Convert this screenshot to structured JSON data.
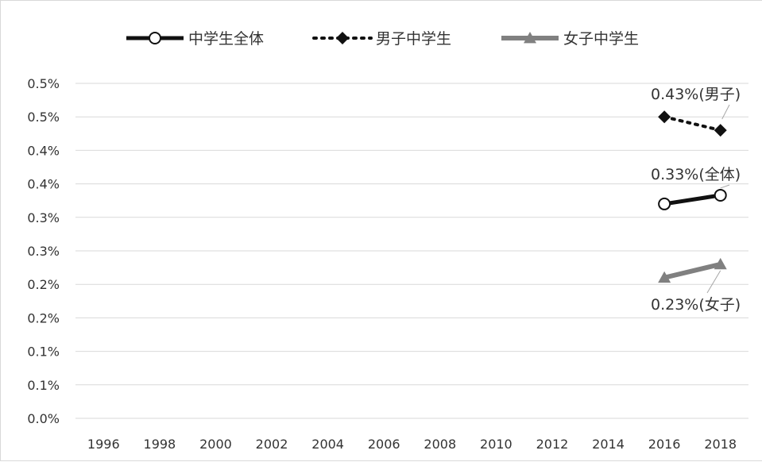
{
  "chart_data": {
    "type": "line",
    "title": "",
    "xlabel": "",
    "ylabel": "",
    "x": [
      1996,
      1998,
      2000,
      2002,
      2004,
      2006,
      2008,
      2010,
      2012,
      2014,
      2016,
      2018
    ],
    "xlim": [
      1996,
      2018
    ],
    "y_tick_values": [
      0.0,
      0.05,
      0.1,
      0.15,
      0.2,
      0.25,
      0.3,
      0.35,
      0.4,
      0.45,
      0.5
    ],
    "y_tick_labels": [
      "0.0%",
      "0.1%",
      "0.1%",
      "0.2%",
      "0.2%",
      "0.3%",
      "0.3%",
      "0.4%",
      "0.4%",
      "0.5%",
      "0.5%"
    ],
    "ylim": [
      0.0,
      0.5
    ],
    "grid": "horizontal",
    "legend_position": "top",
    "series": [
      {
        "name": "中学生全体",
        "color": "#111111",
        "marker": "circle-open",
        "line": "solid",
        "x": [
          2016,
          2018
        ],
        "values": [
          0.32,
          0.333
        ]
      },
      {
        "name": "男子中学生",
        "color": "#111111",
        "marker": "diamond",
        "line": "dotted",
        "x": [
          2016,
          2018
        ],
        "values": [
          0.45,
          0.43
        ]
      },
      {
        "name": "女子中学生",
        "color": "#808080",
        "marker": "triangle",
        "line": "solid",
        "x": [
          2016,
          2018
        ],
        "values": [
          0.21,
          0.23
        ]
      }
    ],
    "annotations": [
      {
        "text": "0.43%(男子)",
        "series": 1
      },
      {
        "text": "0.33%(全体)",
        "series": 0
      },
      {
        "text": "0.23%(女子)",
        "series": 2
      }
    ]
  }
}
